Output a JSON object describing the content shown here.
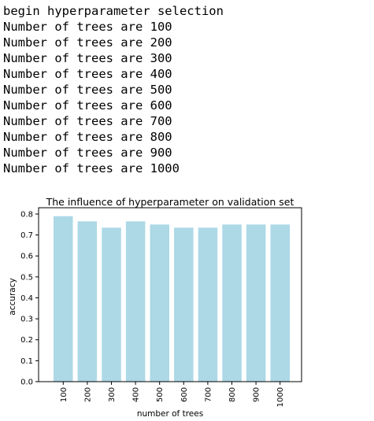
{
  "log": {
    "lines": [
      "begin hyperparameter selection",
      "Number of trees are 100",
      "Number of trees are 200",
      "Number of trees are 300",
      "Number of trees are 400",
      "Number of trees are 500",
      "Number of trees are 600",
      "Number of trees are 700",
      "Number of trees are 800",
      "Number of trees are 900",
      "Number of trees are 1000"
    ]
  },
  "chart_data": {
    "type": "bar",
    "title": "The influence of hyperparameter on validation set",
    "xlabel": "number of trees",
    "ylabel": "accuracy",
    "categories": [
      "100",
      "200",
      "300",
      "400",
      "500",
      "600",
      "700",
      "800",
      "900",
      "1000"
    ],
    "values": [
      0.79,
      0.765,
      0.735,
      0.765,
      0.75,
      0.735,
      0.735,
      0.75,
      0.75,
      0.75
    ],
    "ylim": [
      0,
      0.83
    ],
    "yticks": [
      "0.0",
      "0.1",
      "0.2",
      "0.3",
      "0.4",
      "0.5",
      "0.6",
      "0.7",
      "0.8"
    ],
    "bar_color": "#add8e6",
    "grid": false,
    "legend": "none"
  }
}
